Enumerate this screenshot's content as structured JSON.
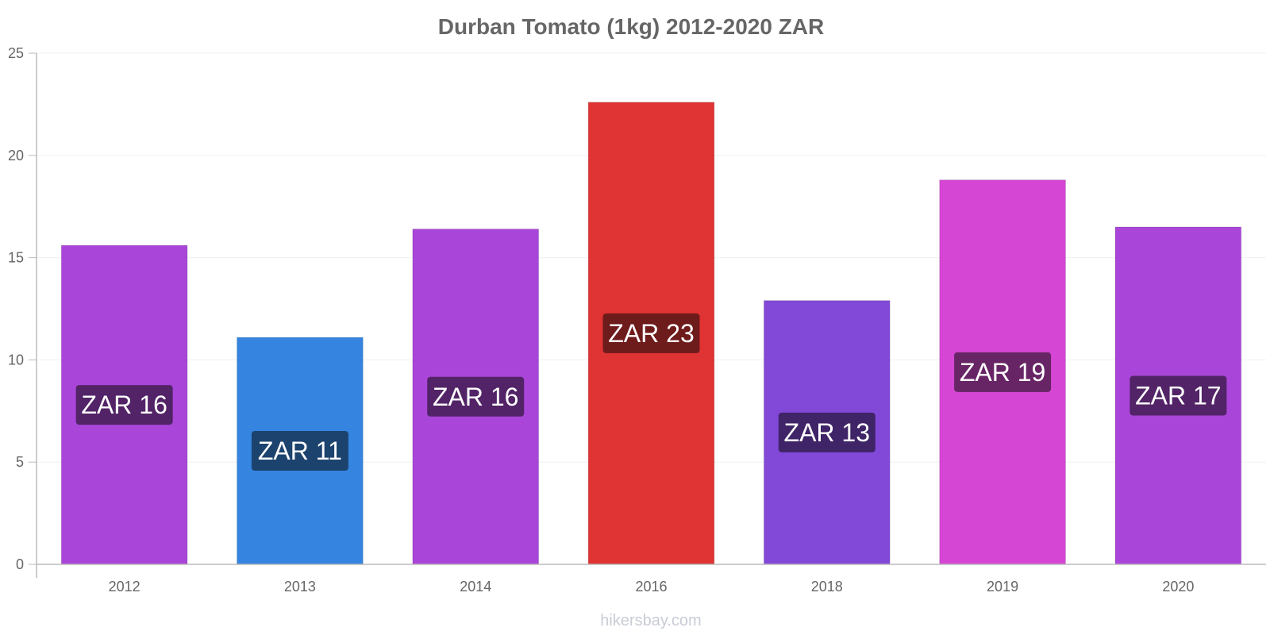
{
  "chart_data": {
    "type": "bar",
    "title": "Durban Tomato (1kg) 2012-2020 ZAR",
    "xlabel": "",
    "ylabel": "",
    "categories": [
      "2012",
      "2013",
      "2014",
      "2016",
      "2018",
      "2019",
      "2020"
    ],
    "values": [
      15.6,
      11.1,
      16.4,
      22.6,
      12.9,
      18.8,
      16.5
    ],
    "labels": [
      "ZAR 16",
      "ZAR 11",
      "ZAR 16",
      "ZAR 23",
      "ZAR 13",
      "ZAR 19",
      "ZAR 17"
    ],
    "colors": [
      "#a946d9",
      "#3584e0",
      "#a946d9",
      "#e03333",
      "#8249d9",
      "#d646d5",
      "#a946d9"
    ],
    "label_bg_colors": [
      "#522367",
      "#1c436e",
      "#522367",
      "#6e1b1b",
      "#3f2467",
      "#682566",
      "#522367"
    ],
    "ylim": [
      0,
      25
    ],
    "yticks": [
      0,
      5,
      10,
      15,
      20,
      25
    ],
    "grid": true,
    "legend": "none"
  },
  "footer": {
    "source": "hikersbay.com"
  }
}
